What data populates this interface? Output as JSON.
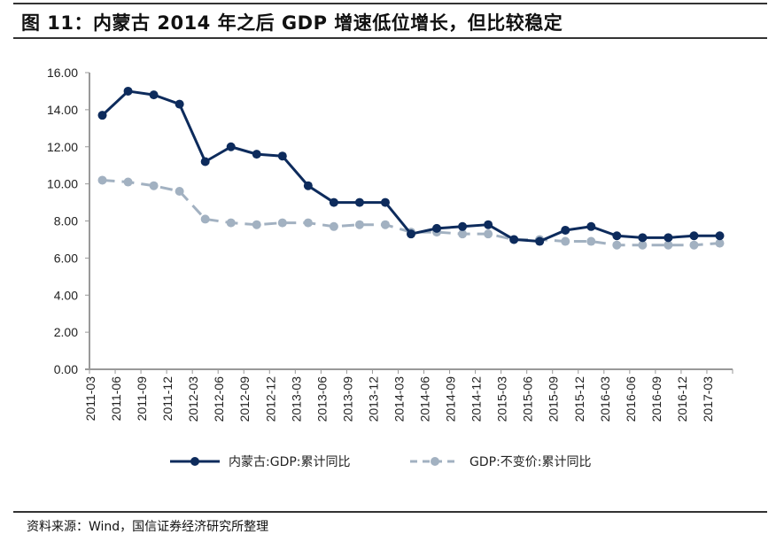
{
  "header": {
    "title": "图 11：内蒙古 2014 年之后 GDP 增速低位增长，但比较稳定"
  },
  "footer": {
    "source": "资料来源：Wind，国信证券经济研究所整理"
  },
  "chart_data": {
    "type": "line",
    "title": "图 11：内蒙古 2014 年之后 GDP 增速低位增长，但比较稳定",
    "xlabel": "",
    "ylabel": "",
    "ylim": [
      0,
      16
    ],
    "yticks": [
      "0.00",
      "2.00",
      "4.00",
      "6.00",
      "8.00",
      "10.00",
      "12.00",
      "14.00",
      "16.00"
    ],
    "grid": false,
    "legend_position": "bottom",
    "categories": [
      "2011-03",
      "2011-06",
      "2011-09",
      "2011-12",
      "2012-03",
      "2012-06",
      "2012-09",
      "2012-12",
      "2013-03",
      "2013-06",
      "2013-09",
      "2013-12",
      "2014-03",
      "2014-06",
      "2014-09",
      "2014-12",
      "2015-03",
      "2015-06",
      "2015-09",
      "2015-12",
      "2016-03",
      "2016-06",
      "2016-09",
      "2016-12",
      "2017-03"
    ],
    "series": [
      {
        "name": "内蒙古:GDP:累计同比",
        "color": "#0d2b5c",
        "style": "solid",
        "values": [
          13.7,
          15.0,
          14.8,
          14.3,
          11.2,
          12.0,
          11.6,
          11.5,
          9.9,
          9.0,
          9.0,
          9.0,
          7.3,
          7.6,
          7.7,
          7.8,
          7.0,
          6.9,
          7.5,
          7.7,
          7.2,
          7.1,
          7.1,
          7.2,
          7.2
        ]
      },
      {
        "name": "GDP:不变价:累计同比",
        "color": "#a2b1c1",
        "style": "dashed",
        "values": [
          10.2,
          10.1,
          9.9,
          9.6,
          8.1,
          7.9,
          7.8,
          7.9,
          7.9,
          7.7,
          7.8,
          7.8,
          7.4,
          7.4,
          7.3,
          7.3,
          7.0,
          7.0,
          6.9,
          6.9,
          6.7,
          6.7,
          6.7,
          6.7,
          6.8
        ]
      }
    ]
  }
}
